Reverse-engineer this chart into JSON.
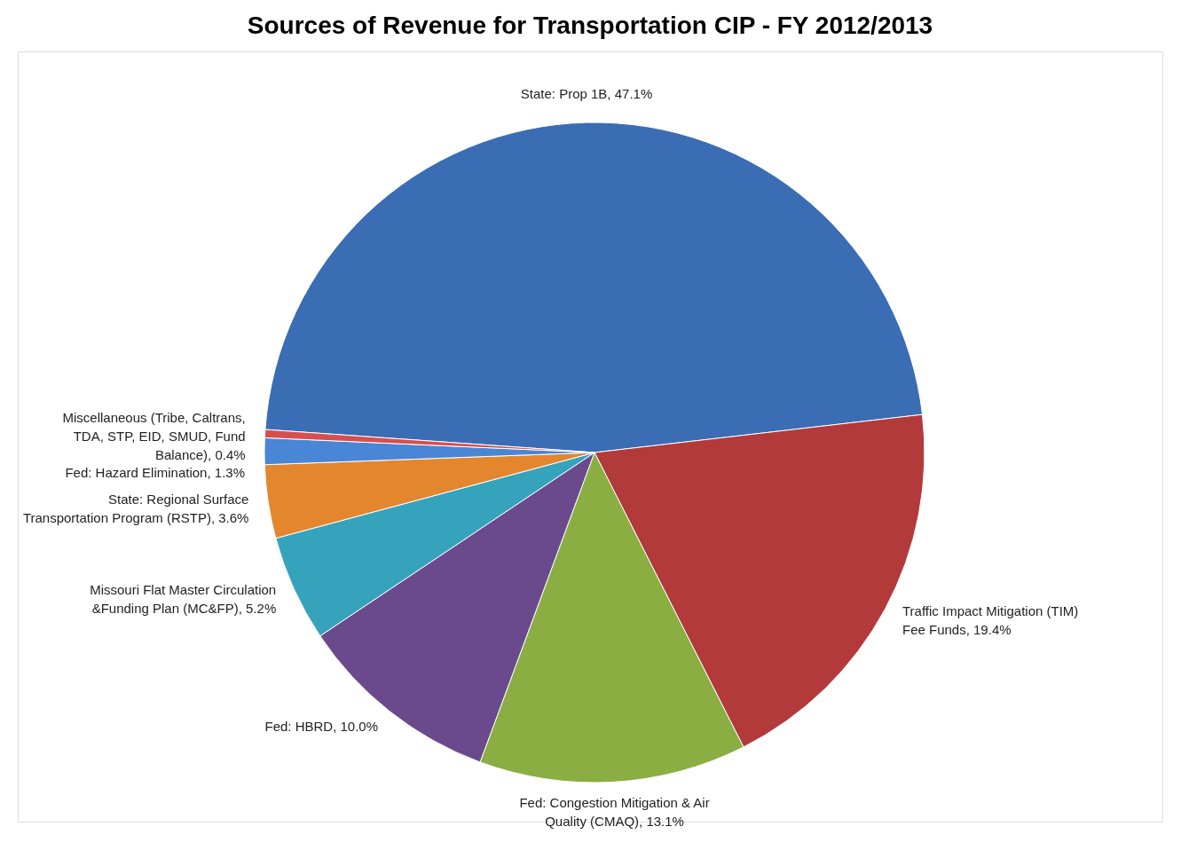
{
  "chart_data": {
    "type": "pie",
    "title": "Sources of Revenue for Transportation CIP - FY 2012/2013",
    "categories": [
      "State: Prop 1B",
      "Traffic Impact Mitigation (TIM) Fee Funds",
      "Fed: Congestion Mitigation & Air Quality (CMAQ)",
      "Fed: HBRD",
      "Missouri Flat Master Circulation &Funding Plan (MC&FP)",
      "State: Regional Surface Transportation Program (RSTP)",
      "Fed: Hazard Elimination",
      "Miscellaneous (Tribe, Caltrans, TDA, STP, EID, SMUD, Fund Balance)"
    ],
    "values": [
      47.1,
      19.4,
      13.1,
      10.0,
      5.2,
      3.6,
      1.3,
      0.4
    ],
    "colors": [
      "#3a6db4",
      "#b23a3a",
      "#8aae42",
      "#6a4a8c",
      "#36a3bd",
      "#e3862e",
      "#4a86d6",
      "#d64f4f"
    ],
    "value_labels": [
      "47.1%",
      "19.4%",
      "13.1%",
      "10.0%",
      "5.2%",
      "3.6%",
      "1.3%",
      "0.4%"
    ],
    "legend": false
  }
}
